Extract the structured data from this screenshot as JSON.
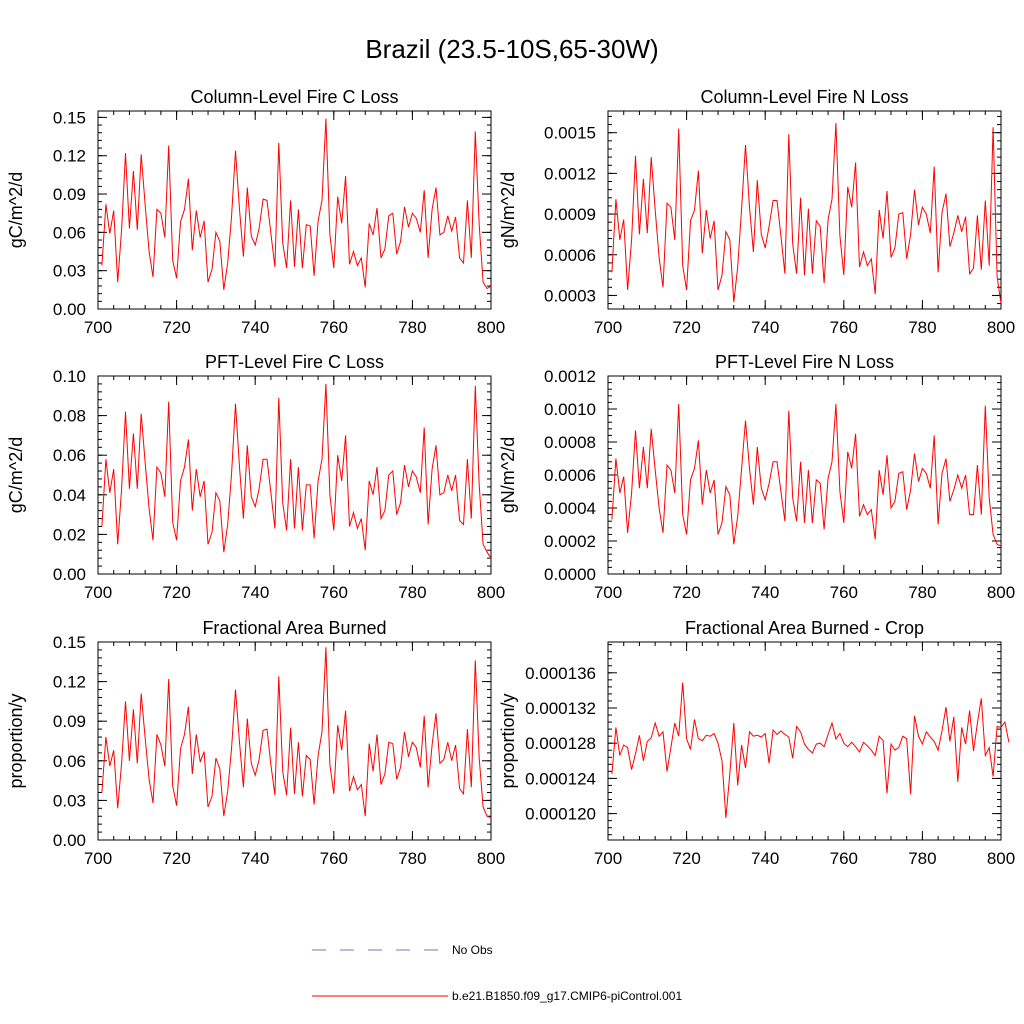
{
  "page_title": "Brazil (23.5-10S,65-30W)",
  "legend": {
    "obs_label": "No Obs",
    "obs_color": "#6b7bb8",
    "model_label": "b.e21.B1850.f09_g17.CMIP6-piControl.001",
    "model_color": "#ff0000"
  },
  "chart_data": [
    {
      "type": "line",
      "title": "Column-Level Fire C Loss",
      "ylabel": "gC/m^2/d",
      "xlim": [
        700,
        800
      ],
      "ylim": [
        0.0,
        0.155
      ],
      "xticks": [
        "700",
        "720",
        "740",
        "760",
        "780",
        "800"
      ],
      "yticks": [
        "0.00",
        "0.03",
        "0.06",
        "0.09",
        "0.12",
        "0.15"
      ],
      "series": [
        {
          "x_start": 701,
          "values": [
            0.034,
            0.082,
            0.059,
            0.077,
            0.021,
            0.062,
            0.122,
            0.063,
            0.108,
            0.062,
            0.121,
            0.081,
            0.045,
            0.025,
            0.078,
            0.075,
            0.056,
            0.128,
            0.038,
            0.024,
            0.068,
            0.078,
            0.102,
            0.046,
            0.077,
            0.056,
            0.069,
            0.021,
            0.031,
            0.06,
            0.053,
            0.015,
            0.036,
            0.073,
            0.124,
            0.078,
            0.041,
            0.095,
            0.057,
            0.05,
            0.063,
            0.086,
            0.085,
            0.059,
            0.033,
            0.13,
            0.052,
            0.032,
            0.085,
            0.033,
            0.078,
            0.032,
            0.066,
            0.065,
            0.026,
            0.069,
            0.085,
            0.149,
            0.058,
            0.032,
            0.088,
            0.067,
            0.104,
            0.035,
            0.045,
            0.034,
            0.04,
            0.017,
            0.067,
            0.058,
            0.079,
            0.04,
            0.047,
            0.073,
            0.075,
            0.043,
            0.053,
            0.08,
            0.064,
            0.075,
            0.071,
            0.06,
            0.093,
            0.04,
            0.078,
            0.095,
            0.058,
            0.06,
            0.073,
            0.061,
            0.072,
            0.04,
            0.036,
            0.085,
            0.04,
            0.139,
            0.066,
            0.021,
            0.016,
            0.018
          ]
        }
      ]
    },
    {
      "type": "line",
      "title": "Column-Level Fire N Loss",
      "ylabel": "gN/m^2/d",
      "xlim": [
        700,
        800
      ],
      "ylim": [
        0.0002,
        0.00166
      ],
      "xticks": [
        "700",
        "720",
        "740",
        "760",
        "780",
        "800"
      ],
      "yticks": [
        "0.0003",
        "0.0006",
        "0.0009",
        "0.0012",
        "0.0015"
      ],
      "ytick_values": [
        0.0003,
        0.0006,
        0.0009,
        0.0012,
        0.0015
      ],
      "series": [
        {
          "x_start": 701,
          "values": [
            0.00047,
            0.00101,
            0.00071,
            0.00086,
            0.00034,
            0.00071,
            0.00133,
            0.00075,
            0.00116,
            0.00076,
            0.00132,
            0.00093,
            0.00058,
            0.00036,
            0.00098,
            0.00095,
            0.00071,
            0.00153,
            0.00052,
            0.00034,
            0.00085,
            0.00093,
            0.00122,
            0.00061,
            0.00093,
            0.00072,
            0.00085,
            0.00034,
            0.00045,
            0.00077,
            0.00071,
            0.00025,
            0.00051,
            0.00094,
            0.00141,
            0.00095,
            0.00062,
            0.00115,
            0.00075,
            0.00065,
            0.00081,
            0.001,
            0.001,
            0.00074,
            0.00046,
            0.00149,
            0.00068,
            0.00046,
            0.00102,
            0.00045,
            0.00094,
            0.00046,
            0.00085,
            0.00081,
            0.00039,
            0.00086,
            0.00101,
            0.00157,
            0.00074,
            0.00045,
            0.0011,
            0.00095,
            0.00128,
            0.00051,
            0.00062,
            0.00052,
            0.00057,
            0.00031,
            0.00093,
            0.00072,
            0.00107,
            0.00058,
            0.00065,
            0.0009,
            0.00091,
            0.00057,
            0.00075,
            0.00108,
            0.00082,
            0.00095,
            0.0009,
            0.00076,
            0.00125,
            0.00047,
            0.00091,
            0.00105,
            0.00066,
            0.00076,
            0.00089,
            0.00077,
            0.00088,
            0.00046,
            0.0005,
            0.00089,
            0.00049,
            0.001,
            0.00052,
            0.00154,
            0.00044,
            0.00024
          ]
        }
      ]
    },
    {
      "type": "line",
      "title": "PFT-Level Fire C Loss",
      "ylabel": "gC/m^2/d",
      "xlim": [
        700,
        800
      ],
      "ylim": [
        0.0,
        0.1
      ],
      "xticks": [
        "700",
        "720",
        "740",
        "760",
        "780",
        "800"
      ],
      "yticks": [
        "0.00",
        "0.02",
        "0.04",
        "0.06",
        "0.08",
        "0.10"
      ],
      "series": [
        {
          "x_start": 701,
          "values": [
            0.024,
            0.058,
            0.041,
            0.053,
            0.015,
            0.043,
            0.082,
            0.043,
            0.071,
            0.043,
            0.081,
            0.056,
            0.033,
            0.017,
            0.054,
            0.051,
            0.039,
            0.087,
            0.026,
            0.017,
            0.047,
            0.054,
            0.068,
            0.032,
            0.053,
            0.039,
            0.047,
            0.015,
            0.021,
            0.041,
            0.037,
            0.011,
            0.025,
            0.051,
            0.086,
            0.054,
            0.028,
            0.065,
            0.039,
            0.034,
            0.043,
            0.058,
            0.058,
            0.041,
            0.023,
            0.089,
            0.036,
            0.022,
            0.058,
            0.023,
            0.054,
            0.022,
            0.045,
            0.045,
            0.018,
            0.047,
            0.058,
            0.096,
            0.04,
            0.022,
            0.06,
            0.047,
            0.07,
            0.024,
            0.031,
            0.023,
            0.028,
            0.012,
            0.047,
            0.04,
            0.054,
            0.028,
            0.032,
            0.05,
            0.052,
            0.03,
            0.036,
            0.055,
            0.044,
            0.052,
            0.049,
            0.041,
            0.074,
            0.025,
            0.053,
            0.065,
            0.04,
            0.041,
            0.05,
            0.042,
            0.05,
            0.027,
            0.025,
            0.058,
            0.028,
            0.095,
            0.045,
            0.015,
            0.011,
            0.008
          ]
        }
      ]
    },
    {
      "type": "line",
      "title": "PFT-Level Fire N Loss",
      "ylabel": "gN/m^2/d",
      "xlim": [
        700,
        800
      ],
      "ylim": [
        0.0,
        0.0012
      ],
      "xticks": [
        "700",
        "720",
        "740",
        "760",
        "780",
        "800"
      ],
      "yticks": [
        "0.0000",
        "0.0002",
        "0.0004",
        "0.0006",
        "0.0008",
        "0.0010",
        "0.0012"
      ],
      "series": [
        {
          "x_start": 701,
          "values": [
            0.00033,
            0.0007,
            0.00049,
            0.00059,
            0.00025,
            0.00049,
            0.00087,
            0.00052,
            0.00077,
            0.00052,
            0.00088,
            0.00063,
            0.0004,
            0.00025,
            0.00066,
            0.00063,
            0.00049,
            0.00103,
            0.00036,
            0.00024,
            0.00057,
            0.00064,
            0.00081,
            0.00042,
            0.00063,
            0.00049,
            0.00057,
            0.00024,
            0.00031,
            0.00053,
            0.00048,
            0.00018,
            0.00035,
            0.00064,
            0.00093,
            0.00064,
            0.00042,
            0.00077,
            0.00052,
            0.00045,
            0.00055,
            0.00068,
            0.00068,
            0.0005,
            0.00032,
            0.00099,
            0.00046,
            0.00032,
            0.00068,
            0.00031,
            0.00063,
            0.00031,
            0.00057,
            0.00055,
            0.00027,
            0.00058,
            0.00068,
            0.00103,
            0.0005,
            0.00031,
            0.00074,
            0.00064,
            0.00085,
            0.00035,
            0.00042,
            0.00036,
            0.00039,
            0.00021,
            0.00063,
            0.00048,
            0.00072,
            0.0004,
            0.00044,
            0.00061,
            0.00062,
            0.00039,
            0.00051,
            0.00073,
            0.00056,
            0.00064,
            0.00061,
            0.00052,
            0.00084,
            0.0003,
            0.00061,
            0.0007,
            0.00044,
            0.00051,
            0.0006,
            0.00052,
            0.0006,
            0.00036,
            0.00036,
            0.00066,
            0.00036,
            0.00102,
            0.00046,
            0.00024,
            0.00018,
            0.00017
          ]
        }
      ]
    },
    {
      "type": "line",
      "title": "Fractional Area Burned",
      "ylabel": "proportion/y",
      "xlim": [
        700,
        800
      ],
      "ylim": [
        0.0,
        0.15
      ],
      "xticks": [
        "700",
        "720",
        "740",
        "760",
        "780",
        "800"
      ],
      "yticks": [
        "0.00",
        "0.03",
        "0.06",
        "0.09",
        "0.12",
        "0.15"
      ],
      "series": [
        {
          "x_start": 701,
          "values": [
            0.036,
            0.078,
            0.056,
            0.068,
            0.024,
            0.058,
            0.105,
            0.06,
            0.099,
            0.058,
            0.111,
            0.077,
            0.046,
            0.028,
            0.08,
            0.072,
            0.056,
            0.122,
            0.041,
            0.026,
            0.069,
            0.08,
            0.101,
            0.05,
            0.08,
            0.059,
            0.067,
            0.025,
            0.033,
            0.062,
            0.054,
            0.018,
            0.037,
            0.07,
            0.114,
            0.074,
            0.04,
            0.092,
            0.058,
            0.049,
            0.061,
            0.083,
            0.084,
            0.057,
            0.034,
            0.124,
            0.052,
            0.034,
            0.085,
            0.035,
            0.074,
            0.033,
            0.064,
            0.061,
            0.027,
            0.064,
            0.082,
            0.146,
            0.057,
            0.035,
            0.087,
            0.068,
            0.098,
            0.037,
            0.048,
            0.038,
            0.042,
            0.018,
            0.073,
            0.052,
            0.08,
            0.042,
            0.05,
            0.074,
            0.073,
            0.046,
            0.055,
            0.082,
            0.063,
            0.074,
            0.07,
            0.055,
            0.094,
            0.04,
            0.072,
            0.096,
            0.058,
            0.061,
            0.074,
            0.06,
            0.072,
            0.039,
            0.035,
            0.084,
            0.04,
            0.136,
            0.062,
            0.025,
            0.018,
            0.017
          ]
        }
      ]
    },
    {
      "type": "line",
      "title": "Fractional Area Burned - Crop",
      "ylabel": "proportion/y",
      "xlim": [
        700,
        800
      ],
      "ylim": [
        0.000117,
        0.0001395
      ],
      "xticks": [
        "700",
        "720",
        "740",
        "760",
        "780",
        "800"
      ],
      "yticks": [
        "0.000120",
        "0.000124",
        "0.000128",
        "0.000132",
        "0.000136"
      ],
      "ytick_values": [
        0.00012,
        0.000124,
        0.000128,
        0.000132,
        0.000136
      ],
      "series": [
        {
          "x_start": 701,
          "values": [
            0.0001245,
            0.0001298,
            0.0001266,
            0.0001278,
            0.0001275,
            0.000125,
            0.0001268,
            0.0001289,
            0.000126,
            0.0001282,
            0.0001286,
            0.0001303,
            0.0001288,
            0.0001293,
            0.0001248,
            0.0001275,
            0.0001303,
            0.0001288,
            0.0001349,
            0.0001285,
            0.0001273,
            0.0001307,
            0.0001285,
            0.0001283,
            0.0001289,
            0.0001288,
            0.0001291,
            0.000128,
            0.000126,
            0.0001195,
            0.0001245,
            0.0001303,
            0.0001232,
            0.0001278,
            0.0001252,
            0.0001293,
            0.0001288,
            0.0001289,
            0.0001287,
            0.0001291,
            0.0001257,
            0.0001295,
            0.000129,
            0.0001294,
            0.000129,
            0.0001287,
            0.0001263,
            0.0001299,
            0.0001293,
            0.0001279,
            0.0001273,
            0.0001269,
            0.0001279,
            0.000128,
            0.0001276,
            0.000129,
            0.0001303,
            0.0001285,
            0.0001291,
            0.000128,
            0.0001276,
            0.0001281,
            0.0001276,
            0.000127,
            0.0001281,
            0.0001277,
            0.0001272,
            0.0001266,
            0.0001288,
            0.0001283,
            0.0001223,
            0.0001279,
            0.0001272,
            0.0001275,
            0.0001288,
            0.0001285,
            0.0001222,
            0.0001311,
            0.0001288,
            0.0001279,
            0.0001293,
            0.0001287,
            0.0001282,
            0.0001272,
            0.0001294,
            0.0001321,
            0.0001282,
            0.000131,
            0.0001236,
            0.0001298,
            0.0001279,
            0.0001317,
            0.0001271,
            0.0001303,
            0.0001331,
            0.0001266,
            0.0001275,
            0.0001242,
            0.0001299,
            0.0001298,
            0.0001304,
            0.0001281
          ]
        }
      ]
    }
  ]
}
